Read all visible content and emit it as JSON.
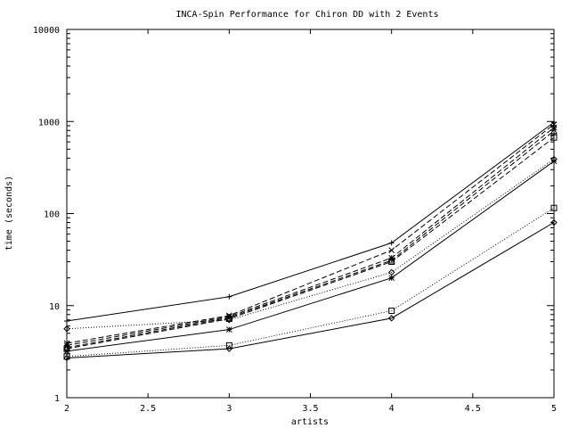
{
  "chart_data": {
    "type": "line",
    "title": "INCA-Spin Performance for Chiron DD with 2 Events",
    "xlabel": "artists",
    "ylabel": "time (seconds)",
    "x": [
      2,
      3,
      4,
      5
    ],
    "xlim": [
      2,
      5
    ],
    "ylim": [
      1,
      10000
    ],
    "yscale": "log",
    "x_ticks": [
      "2",
      "2.5",
      "3",
      "3.5",
      "4",
      "4.5",
      "5"
    ],
    "y_ticks": [
      "1",
      "10",
      "100",
      "1000",
      "10000"
    ],
    "grid": false,
    "legend": "none",
    "series": [
      {
        "marker": "plus",
        "dash": "solid",
        "values": [
          6.8,
          12.5,
          48,
          980
        ]
      },
      {
        "marker": "cross",
        "dash": "dashed",
        "values": [
          3.9,
          7.8,
          40,
          930
        ]
      },
      {
        "marker": "star",
        "dash": "dashed",
        "values": [
          3.7,
          7.6,
          33,
          860
        ]
      },
      {
        "marker": "triangle",
        "dash": "dashed",
        "values": [
          3.5,
          7.4,
          31,
          790
        ]
      },
      {
        "marker": "square",
        "dash": "dashed",
        "values": [
          3.4,
          7.2,
          30,
          670
        ]
      },
      {
        "marker": "diamond",
        "dash": "dotted",
        "values": [
          5.6,
          7.0,
          23,
          390
        ]
      },
      {
        "marker": "star",
        "dash": "solid",
        "values": [
          3.2,
          5.5,
          20,
          370
        ]
      },
      {
        "marker": "square",
        "dash": "dotted",
        "values": [
          2.8,
          3.7,
          8.8,
          115
        ]
      },
      {
        "marker": "diamond",
        "dash": "solid",
        "values": [
          2.7,
          3.4,
          7.3,
          80
        ]
      }
    ]
  }
}
